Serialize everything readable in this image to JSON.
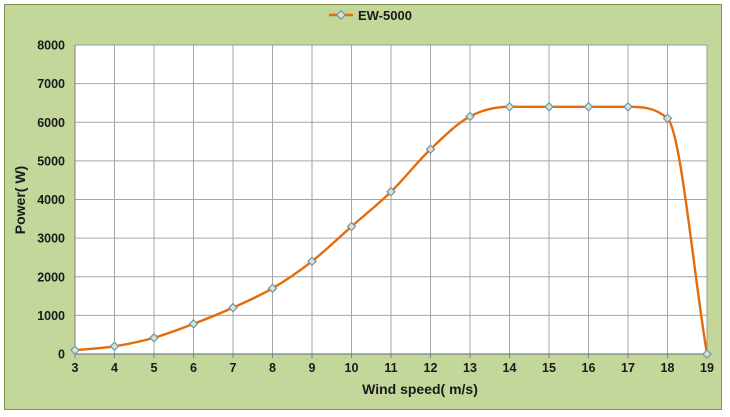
{
  "chart_data": {
    "type": "line",
    "title": "",
    "x": [
      3,
      4,
      5,
      6,
      7,
      8,
      9,
      10,
      11,
      12,
      13,
      14,
      15,
      16,
      17,
      18,
      19
    ],
    "series": [
      {
        "name": "EW-5000",
        "values": [
          100,
          200,
          420,
          780,
          1200,
          1700,
          2400,
          3300,
          4200,
          5300,
          6150,
          6400,
          6400,
          6400,
          6400,
          6100,
          0
        ],
        "color": "#e46c0a",
        "marker": "diamond",
        "marker_fill": "#dae6c3",
        "marker_stroke": "#6d94b5"
      }
    ],
    "xlabel": "Wind speed( m/s)",
    "ylabel": "Power( W)",
    "xlim": [
      3,
      19
    ],
    "ylim": [
      0,
      8000
    ],
    "x_ticks": [
      3,
      4,
      5,
      6,
      7,
      8,
      9,
      10,
      11,
      12,
      13,
      14,
      15,
      16,
      17,
      18,
      19
    ],
    "y_ticks": [
      0,
      1000,
      2000,
      3000,
      4000,
      5000,
      6000,
      7000,
      8000
    ],
    "grid": true,
    "legend_position": "top-center",
    "colors": {
      "background": "#c4d79b",
      "frame_border": "#7c944c",
      "plot_background": "#ffffff",
      "gridline": "#a6a6a6",
      "plot_border": "#999999",
      "axis_line": "#7f7f7f",
      "tick": "#7f7f7f",
      "text": "#1a1a1a"
    }
  }
}
